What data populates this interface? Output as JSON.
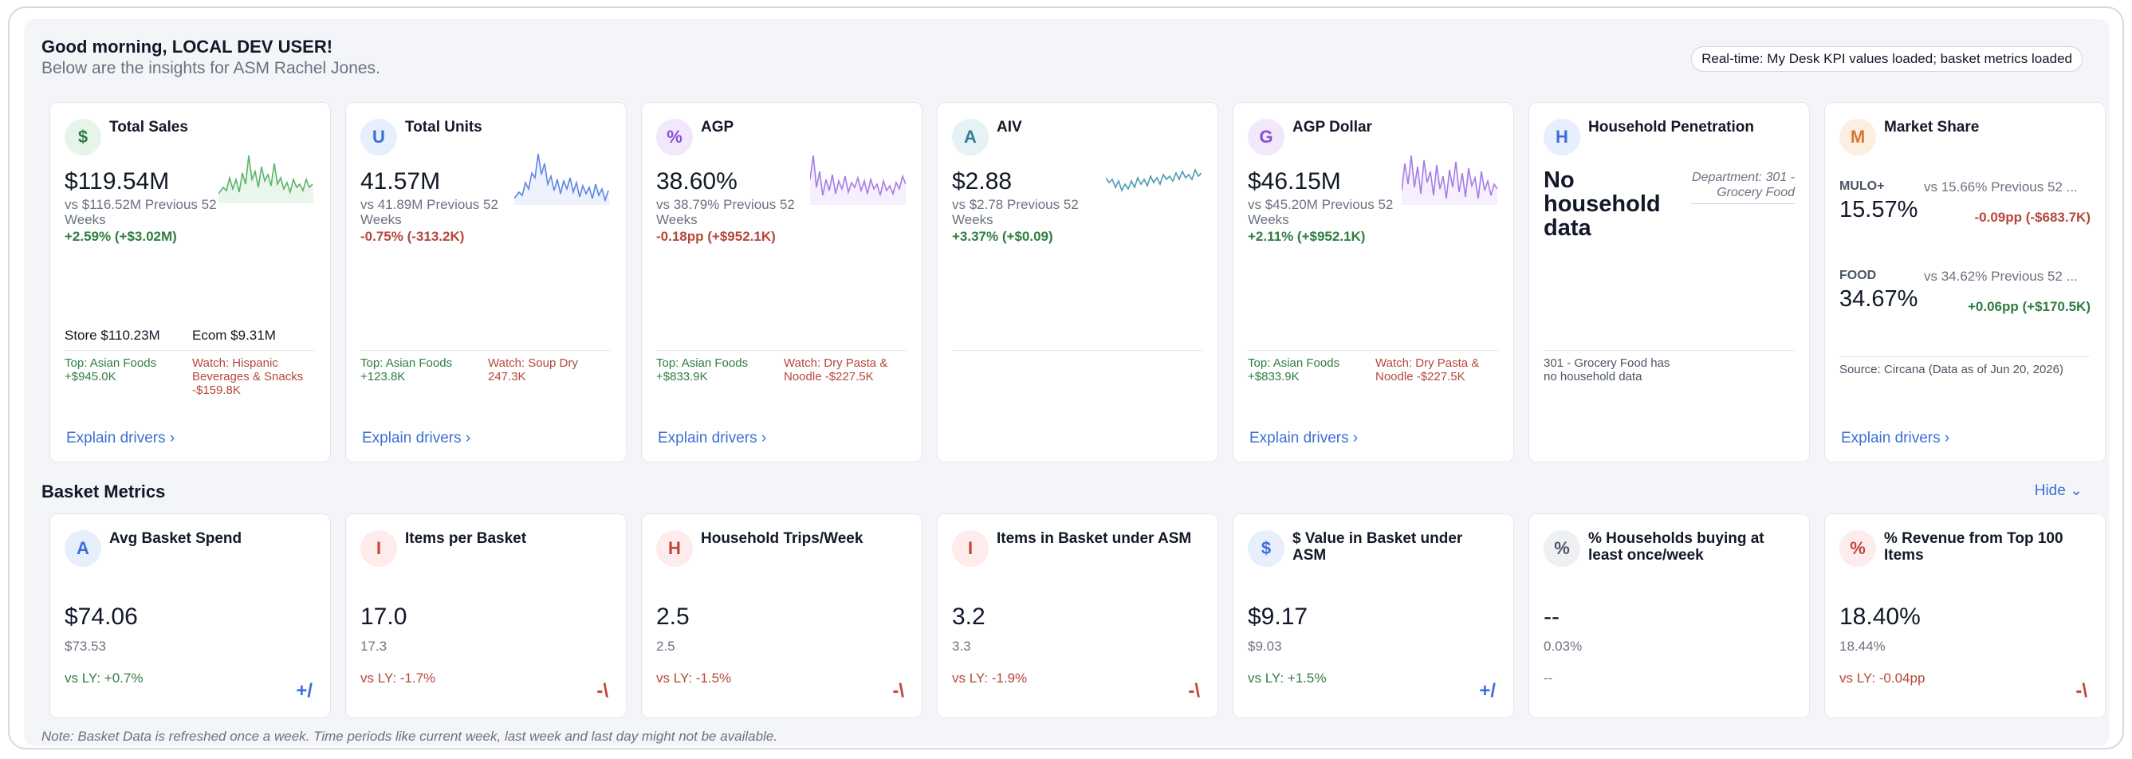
{
  "header": {
    "greeting": "Good morning, LOCAL DEV USER!",
    "subtitle": "Below are the insights for ASM Rachel Jones.",
    "realtime_badge": "Real-time: My Desk KPI values loaded; basket metrics loaded"
  },
  "kpis": [
    {
      "icon": "$",
      "title": "Total Sales",
      "value": "$119.54M",
      "vs": "vs $116.52M Previous 52 Weeks",
      "change": "+2.59% (+$3.02M)",
      "split_store": "Store $110.23M",
      "split_ecom": "Ecom $9.31M",
      "top": "Top: Asian Foods +$945.0K",
      "watch": "Watch: Hispanic Beverages & Snacks -$159.8K",
      "explain": "Explain drivers"
    },
    {
      "icon": "U",
      "title": "Total Units",
      "value": "41.57M",
      "vs": "vs 41.89M Previous 52 Weeks",
      "change": "-0.75% (-313.2K)",
      "top": "Top: Asian Foods +123.8K",
      "watch": "Watch: Soup Dry 247.3K",
      "explain": "Explain drivers"
    },
    {
      "icon": "%",
      "title": "AGP",
      "value": "38.60%",
      "vs": "vs 38.79% Previous 52 Weeks",
      "change": "-0.18pp (+$952.1K)",
      "top": "Top: Asian Foods +$833.9K",
      "watch": "Watch: Dry Pasta & Noodle -$227.5K",
      "explain": "Explain drivers"
    },
    {
      "icon": "A",
      "title": "AIV",
      "value": "$2.88",
      "vs": "vs $2.78 Previous 52 Weeks",
      "change": "+3.37% (+$0.09)"
    },
    {
      "icon": "G",
      "title": "AGP Dollar",
      "value": "$46.15M",
      "vs": "vs $45.20M Previous 52 Weeks",
      "change": "+2.11% (+$952.1K)",
      "top": "Top: Asian Foods +$833.9K",
      "watch": "Watch: Dry Pasta & Noodle -$227.5K",
      "explain": "Explain drivers"
    },
    {
      "icon": "H",
      "title": "Household Penetration",
      "value": "No household data",
      "dept": "Department: 301 - Grocery Food",
      "note": "301 - Grocery Food has no household data"
    },
    {
      "icon": "M",
      "title": "Market Share",
      "rows": [
        {
          "label": "MULO+",
          "value": "15.57%",
          "vs": "vs 15.66% Previous 52 ...",
          "change": "-0.09pp (-$683.7K)"
        },
        {
          "label": "FOOD",
          "value": "34.67%",
          "vs": "vs 34.62% Previous 52 ...",
          "change": "+0.06pp (+$170.5K)"
        }
      ],
      "source": "Source: Circana (Data as of Jun 20, 2026)",
      "explain": "Explain drivers"
    }
  ],
  "basket": {
    "title": "Basket Metrics",
    "hide_label": "Hide",
    "items": [
      {
        "icon": "A",
        "title": "Avg Basket Spend",
        "value": "$74.06",
        "prev": "$73.53",
        "ly": "vs LY: +0.7%",
        "trend": "+/"
      },
      {
        "icon": "I",
        "title": "Items per Basket",
        "value": "17.0",
        "prev": "17.3",
        "ly": "vs LY: -1.7%",
        "trend": "-\\"
      },
      {
        "icon": "H",
        "title": "Household Trips/Week",
        "value": "2.5",
        "prev": "2.5",
        "ly": "vs LY: -1.5%",
        "trend": "-\\"
      },
      {
        "icon": "I",
        "title": "Items in Basket under ASM",
        "value": "3.2",
        "prev": "3.3",
        "ly": "vs LY: -1.9%",
        "trend": "-\\"
      },
      {
        "icon": "$",
        "title": "$ Value in Basket under ASM",
        "value": "$9.17",
        "prev": "$9.03",
        "ly": "vs LY: +1.5%",
        "trend": "+/"
      },
      {
        "icon": "%",
        "title": "% Households buying at least once/week",
        "value": "--",
        "prev": "0.03%",
        "ly": "--"
      },
      {
        "icon": "%",
        "title": "% Revenue from Top 100 Items",
        "value": "18.40%",
        "prev": "18.44%",
        "ly": "vs LY: -0.04pp",
        "trend": "-\\"
      }
    ],
    "footnote": "Note: Basket Data is refreshed once a week. Time periods like current week, last week and last day might not be available."
  },
  "colors": {
    "accent": "#3b6fd6",
    "positive": "#2f7d40",
    "negative": "#b5473b",
    "spark_green": "#5cb46a",
    "spark_blue": "#5b86e6",
    "spark_purple": "#a77be6",
    "spark_teal": "#4c9bb0"
  }
}
